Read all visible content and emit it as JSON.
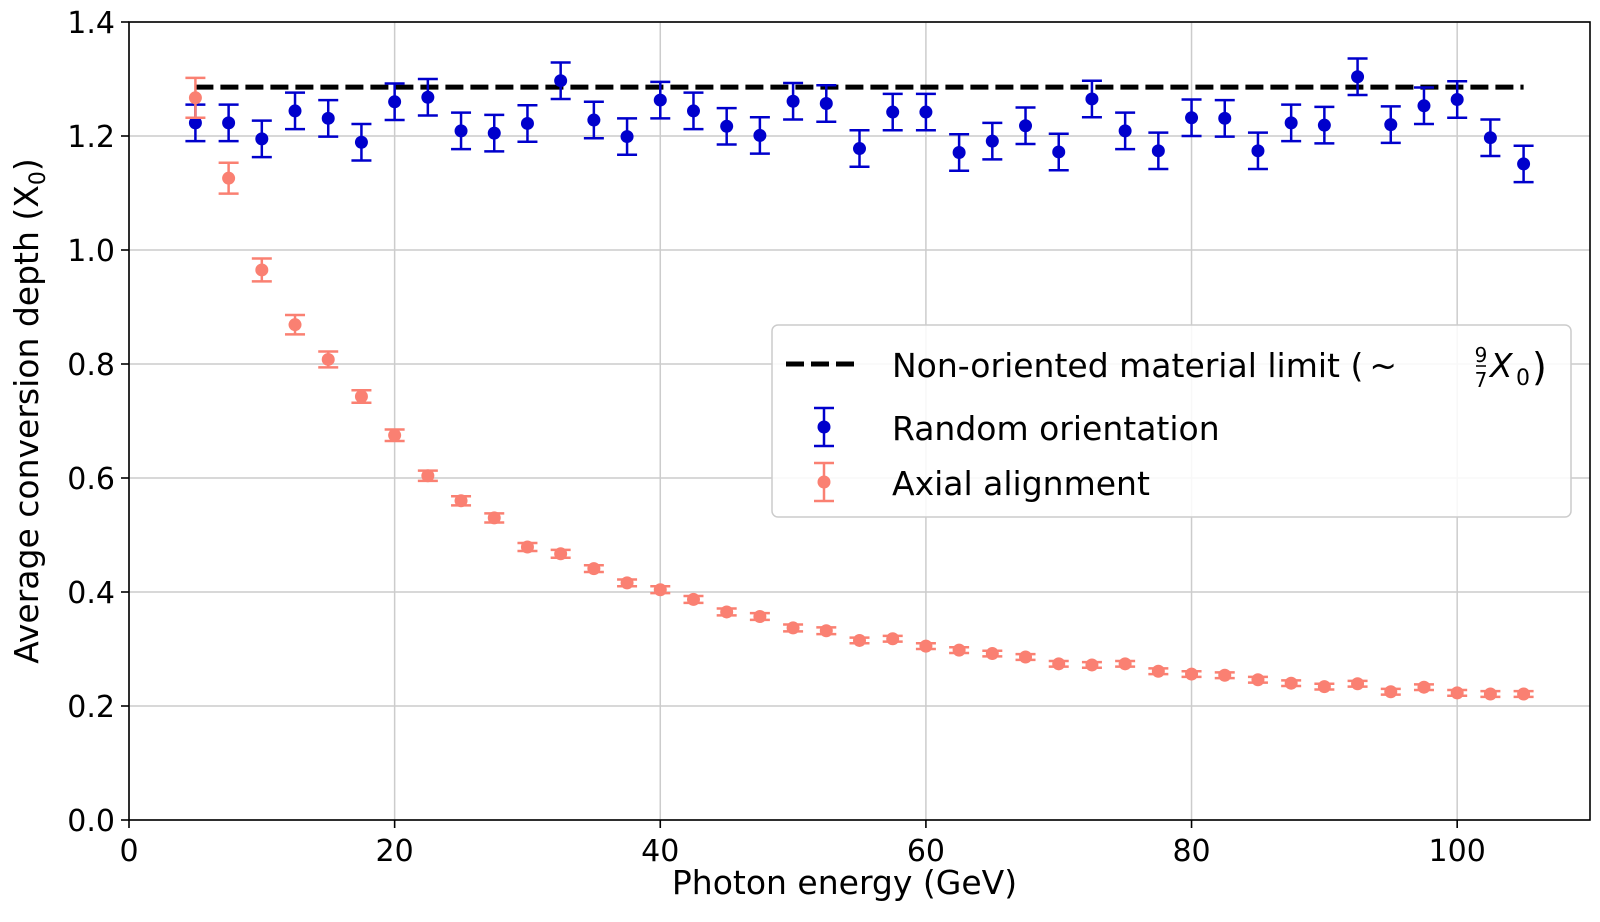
{
  "chart_data": {
    "type": "scatter",
    "title": "",
    "xlabel": "Photon energy (GeV)",
    "ylabel_main": "Average conversion depth (X",
    "ylabel_sub": "0",
    "ylabel_tail": ")",
    "ylabel": "Average conversion depth (X0)",
    "xlim": [
      0,
      110
    ],
    "ylim": [
      0,
      1.4
    ],
    "xticks": [
      0,
      20,
      40,
      60,
      80,
      100
    ],
    "xtick_labels": [
      "0",
      "20",
      "40",
      "60",
      "80",
      "100"
    ],
    "yticks": [
      0.0,
      0.2,
      0.4,
      0.6,
      0.8,
      1.0,
      1.2,
      1.4
    ],
    "ytick_labels": [
      "0.0",
      "0.2",
      "0.4",
      "0.6",
      "0.8",
      "1.0",
      "1.2",
      "1.4"
    ],
    "grid": true,
    "legend_position": "center-right",
    "x": [
      5,
      7.5,
      10,
      12.5,
      15,
      17.5,
      20,
      22.5,
      25,
      27.5,
      30,
      32.5,
      35,
      37.5,
      40,
      42.5,
      45,
      47.5,
      50,
      52.5,
      55,
      57.5,
      60,
      62.5,
      65,
      67.5,
      70,
      72.5,
      75,
      77.5,
      80,
      82.5,
      85,
      87.5,
      90,
      92.5,
      95,
      97.5,
      100,
      102.5,
      105
    ],
    "reference_line": {
      "name": "Non-oriented material limit",
      "legend_prefix": "Non-oriented material limit (",
      "legend_math_tilde": "~",
      "legend_math_num": "9",
      "legend_math_den": "7",
      "legend_math_var": "X",
      "legend_math_sub": "0",
      "legend_suffix": ")",
      "value": 1.2857,
      "x_range": [
        5,
        105
      ],
      "style": "dashed",
      "color": "#000000"
    },
    "series": [
      {
        "name": "Random orientation",
        "color": "#0000cc",
        "values": [
          1.223,
          1.223,
          1.195,
          1.244,
          1.231,
          1.189,
          1.26,
          1.268,
          1.209,
          1.205,
          1.222,
          1.297,
          1.228,
          1.199,
          1.263,
          1.244,
          1.217,
          1.201,
          1.261,
          1.257,
          1.178,
          1.242,
          1.242,
          1.171,
          1.191,
          1.218,
          1.172,
          1.265,
          1.209,
          1.174,
          1.232,
          1.231,
          1.174,
          1.223,
          1.219,
          1.304,
          1.22,
          1.253,
          1.264,
          1.197,
          1.151
        ],
        "errors": [
          0.032,
          0.032,
          0.032,
          0.032,
          0.032,
          0.032,
          0.032,
          0.032,
          0.032,
          0.032,
          0.032,
          0.032,
          0.032,
          0.032,
          0.032,
          0.032,
          0.032,
          0.032,
          0.032,
          0.032,
          0.032,
          0.032,
          0.032,
          0.032,
          0.032,
          0.032,
          0.032,
          0.032,
          0.032,
          0.032,
          0.032,
          0.032,
          0.032,
          0.032,
          0.032,
          0.032,
          0.032,
          0.032,
          0.032,
          0.032,
          0.032
        ]
      },
      {
        "name": "Axial alignment",
        "color": "#fa8072",
        "values": [
          1.267,
          1.126,
          0.965,
          0.869,
          0.808,
          0.743,
          0.675,
          0.604,
          0.56,
          0.53,
          0.479,
          0.467,
          0.441,
          0.416,
          0.404,
          0.387,
          0.365,
          0.357,
          0.337,
          0.332,
          0.315,
          0.318,
          0.305,
          0.298,
          0.292,
          0.286,
          0.274,
          0.272,
          0.274,
          0.261,
          0.256,
          0.254,
          0.246,
          0.24,
          0.234,
          0.239,
          0.225,
          0.233,
          0.223,
          0.221,
          0.221
        ],
        "errors": [
          0.035,
          0.027,
          0.02,
          0.017,
          0.014,
          0.011,
          0.01,
          0.009,
          0.008,
          0.008,
          0.007,
          0.007,
          0.006,
          0.006,
          0.006,
          0.006,
          0.006,
          0.006,
          0.006,
          0.006,
          0.005,
          0.005,
          0.005,
          0.005,
          0.005,
          0.005,
          0.005,
          0.005,
          0.005,
          0.005,
          0.005,
          0.005,
          0.005,
          0.005,
          0.005,
          0.005,
          0.005,
          0.005,
          0.005,
          0.005,
          0.005
        ]
      }
    ]
  }
}
